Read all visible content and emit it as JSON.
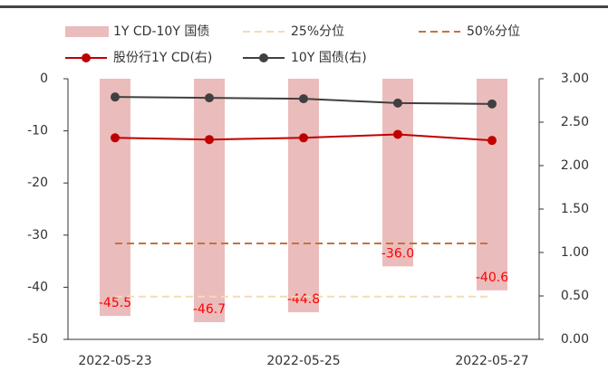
{
  "chart_data": {
    "type": "bar",
    "categories": [
      "2022-05-23",
      null,
      "2022-05-25",
      null,
      "2022-05-27"
    ],
    "series": [
      {
        "name": "1Y CD-10Y 国债",
        "kind": "bar",
        "color": "#ebbcbc",
        "values": [
          -45.5,
          -46.7,
          -44.8,
          -36.0,
          -40.6
        ],
        "value_labels": [
          "-45.5",
          "-46.7",
          "-44.8",
          "-36.0",
          "-40.6"
        ],
        "label_color": "#ff0000"
      },
      {
        "name": "25%分位",
        "kind": "line",
        "dash": true,
        "color": "#f3dbb4",
        "values": [
          -41.8,
          -41.8,
          -41.8,
          -41.8,
          -41.8
        ]
      },
      {
        "name": "50%分位",
        "kind": "line",
        "dash": true,
        "color": "#c4733f",
        "values": [
          -31.6,
          -31.6,
          -31.6,
          -31.6,
          -31.6
        ]
      },
      {
        "name": "股份行1Y CD(右)",
        "kind": "line",
        "marker": true,
        "color": "#c00000",
        "axis": "y2",
        "values": [
          2.32,
          2.3,
          2.32,
          2.36,
          2.29
        ]
      },
      {
        "name": "10Y 国债(右)",
        "kind": "line",
        "marker": true,
        "color": "#404040",
        "axis": "y2",
        "values": [
          2.79,
          2.78,
          2.77,
          2.72,
          2.71
        ]
      }
    ],
    "ylim": [
      0,
      -50
    ],
    "yticks": [
      0,
      -10,
      -20,
      -30,
      -40,
      -50
    ],
    "y2lim": [
      3,
      0
    ],
    "y2ticks": [
      {
        "value": 3,
        "label": "3.00"
      },
      {
        "value": 2.5,
        "label": "2.50"
      },
      {
        "value": 2,
        "label": "2.00"
      },
      {
        "value": 1.5,
        "label": "1.50"
      },
      {
        "value": 1,
        "label": "1.00"
      },
      {
        "value": 0.5,
        "label": "0.50"
      },
      {
        "value": 0,
        "label": "0.00"
      }
    ],
    "legend": "top"
  }
}
